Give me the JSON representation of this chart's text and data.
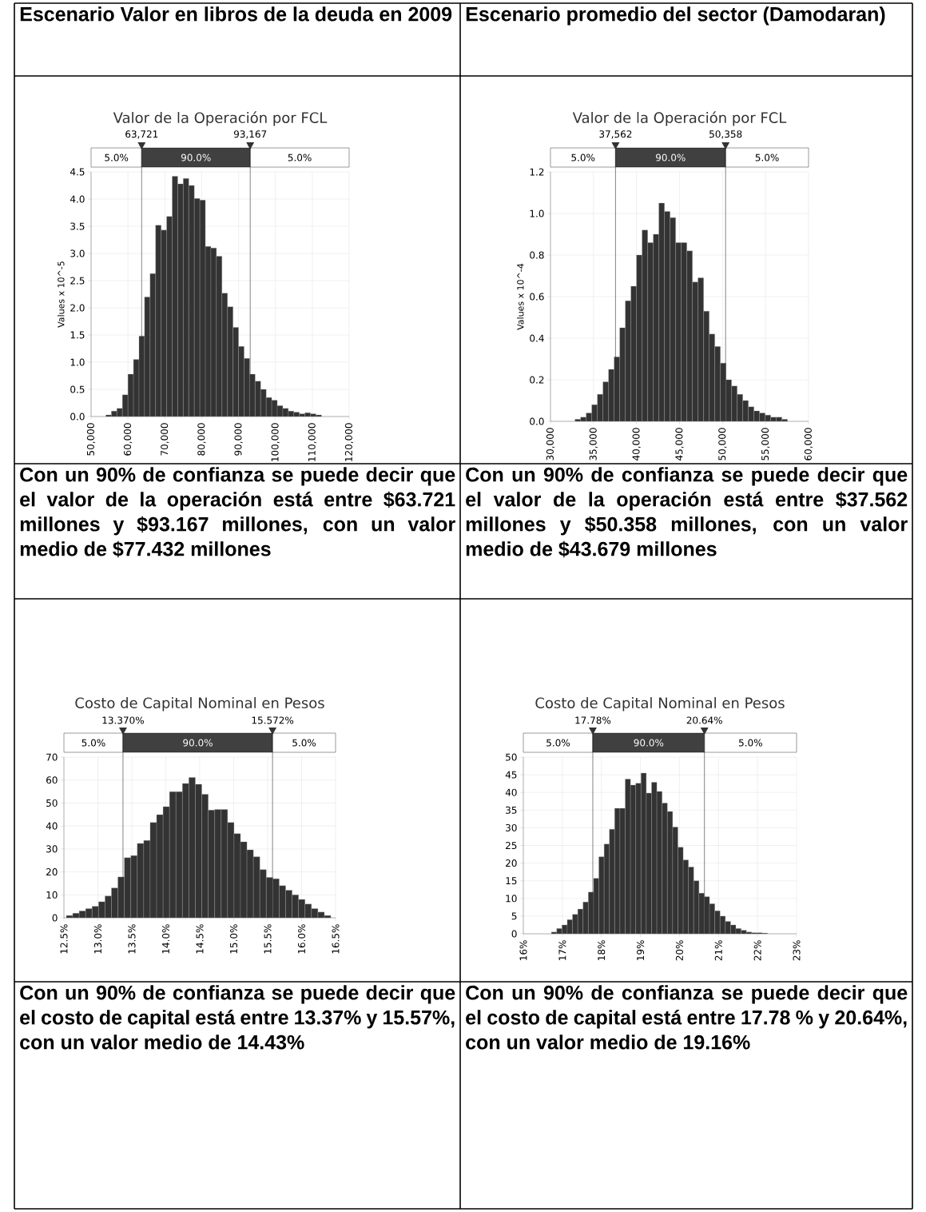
{
  "chart_data": [
    {
      "type": "histogram",
      "title": "Valor de la Operación por FCL",
      "ylabel": "Values x 10^-5",
      "color": "#333333",
      "grid": true,
      "bins": [
        54000,
        55500,
        57000,
        58500,
        60000,
        61500,
        63000,
        64500,
        66000,
        67500,
        69000,
        70500,
        72000,
        73500,
        75000,
        76500,
        78000,
        79500,
        81000,
        82500,
        84000,
        85500,
        87000,
        88500,
        90000,
        91500,
        93000,
        94500,
        96000,
        97500,
        99000,
        100500,
        102000,
        103500,
        105000,
        106500,
        108000,
        109500,
        111000,
        112500
      ],
      "values": [
        0.03,
        0.1,
        0.15,
        0.4,
        0.78,
        1.05,
        1.48,
        2.2,
        2.63,
        3.52,
        3.43,
        3.68,
        4.42,
        4.28,
        4.38,
        4.25,
        4.01,
        3.98,
        3.13,
        3.1,
        2.95,
        2.27,
        2.02,
        1.64,
        1.29,
        1.07,
        0.78,
        0.65,
        0.5,
        0.35,
        0.3,
        0.2,
        0.15,
        0.1,
        0.08,
        0.05,
        0.07,
        0.05,
        0.03
      ],
      "xlim": [
        50000,
        120000
      ],
      "ylim": [
        0,
        4.5
      ],
      "xticks": [
        {
          "value": 50000,
          "label": "50,000"
        },
        {
          "value": 60000,
          "label": "60,000"
        },
        {
          "value": 70000,
          "label": "70,000"
        },
        {
          "value": 80000,
          "label": "80,000"
        },
        {
          "value": 90000,
          "label": "90,000"
        },
        {
          "value": 100000,
          "label": "100,000"
        },
        {
          "value": 110000,
          "label": "110,000"
        },
        {
          "value": 120000,
          "label": "120,000"
        }
      ],
      "yticks": [
        {
          "value": 0,
          "label": "0.0"
        },
        {
          "value": 0.5,
          "label": "0.5"
        },
        {
          "value": 1,
          "label": "1.0"
        },
        {
          "value": 1.5,
          "label": "1.5"
        },
        {
          "value": 2,
          "label": "2.0"
        },
        {
          "value": 2.5,
          "label": "2.5"
        },
        {
          "value": 3,
          "label": "3.0"
        },
        {
          "value": 3.5,
          "label": "3.5"
        },
        {
          "value": 4,
          "label": "4.0"
        },
        {
          "value": 4.5,
          "label": "4.5"
        }
      ],
      "ref_lines": [
        {
          "axis": "x",
          "value": 63721,
          "label": "63,721"
        },
        {
          "axis": "x",
          "value": 93167,
          "label": "93,167"
        }
      ],
      "annotations": [
        "5.0%",
        "90.0%",
        "5.0%",
        "Escenario Valor en libros de la deuda en 2009",
        "Con un 90% de confianza se puede decir que el valor de la operación está entre $63.721 millones y $93.167 millones, con un valor medio de $77.432 millones"
      ]
    },
    {
      "type": "histogram",
      "title": "Valor de la Operación por FCL",
      "ylabel": "Values x 10^-4",
      "color": "#333333",
      "grid": true,
      "bins": [
        32850,
        33500,
        34150,
        34800,
        35450,
        36100,
        36750,
        37400,
        38050,
        38700,
        39350,
        40000,
        40650,
        41300,
        41950,
        42600,
        43250,
        43900,
        44550,
        45200,
        45850,
        46500,
        47150,
        47800,
        48450,
        49100,
        49750,
        50400,
        51050,
        51700,
        52350,
        53000,
        53650,
        54300,
        54950,
        55600,
        56250,
        56900,
        57550
      ],
      "values": [
        0.01,
        0.02,
        0.04,
        0.08,
        0.13,
        0.19,
        0.25,
        0.31,
        0.45,
        0.58,
        0.65,
        0.8,
        0.92,
        0.86,
        0.9,
        1.05,
        1.01,
        0.98,
        0.86,
        0.86,
        0.82,
        0.67,
        0.69,
        0.53,
        0.42,
        0.36,
        0.28,
        0.2,
        0.17,
        0.13,
        0.1,
        0.07,
        0.05,
        0.04,
        0.03,
        0.02,
        0.02,
        0.01
      ],
      "xlim": [
        30000,
        60000
      ],
      "ylim": [
        0,
        1.2
      ],
      "xticks": [
        {
          "value": 30000,
          "label": "30,000"
        },
        {
          "value": 35000,
          "label": "35,000"
        },
        {
          "value": 40000,
          "label": "40,000"
        },
        {
          "value": 45000,
          "label": "45,000"
        },
        {
          "value": 50000,
          "label": "50,000"
        },
        {
          "value": 55000,
          "label": "55,000"
        },
        {
          "value": 60000,
          "label": "60,000"
        }
      ],
      "yticks": [
        {
          "value": 0,
          "label": "0.0"
        },
        {
          "value": 0.2,
          "label": "0.2"
        },
        {
          "value": 0.4,
          "label": "0.4"
        },
        {
          "value": 0.6,
          "label": "0.6"
        },
        {
          "value": 0.8,
          "label": "0.8"
        },
        {
          "value": 1,
          "label": "1.0"
        },
        {
          "value": 1.2,
          "label": "1.2"
        }
      ],
      "ref_lines": [
        {
          "axis": "x",
          "value": 37562,
          "label": "37,562"
        },
        {
          "axis": "x",
          "value": 50358,
          "label": "50,358"
        }
      ],
      "annotations": [
        "5.0%",
        "90.0%",
        "5.0%",
        "Escenario promedio del sector (Damodaran)",
        "Con un 90% de confianza se puede decir que el valor de la operación está entre $37.562 millones y $50.358 millones, con un valor medio de $43.679 millones"
      ]
    },
    {
      "type": "histogram",
      "title": "Costo de Capital Nominal en Pesos",
      "color": "#333333",
      "grid": true,
      "bins": [
        12.535,
        12.63,
        12.725,
        12.82,
        12.915,
        13.01,
        13.105,
        13.2,
        13.295,
        13.39,
        13.485,
        13.58,
        13.675,
        13.77,
        13.865,
        13.96,
        14.055,
        14.15,
        14.245,
        14.34,
        14.435,
        14.53,
        14.625,
        14.72,
        14.815,
        14.91,
        15.005,
        15.1,
        15.195,
        15.29,
        15.385,
        15.48,
        15.575,
        15.67,
        15.765,
        15.86,
        15.955,
        16.05,
        16.145,
        16.24,
        16.335,
        16.43
      ],
      "values": [
        1,
        2,
        3,
        4,
        5,
        7,
        9.5,
        13,
        17.8,
        26.2,
        27.1,
        32.4,
        33.7,
        41.5,
        44.9,
        48.4,
        54.9,
        54.9,
        58.5,
        61.1,
        58.2,
        53.8,
        46.9,
        47.2,
        47.2,
        41.5,
        36.7,
        33.1,
        29.6,
        26.6,
        21,
        17.6,
        17,
        14,
        12,
        10,
        8,
        6,
        4,
        2.5,
        1
      ],
      "xlim": [
        12.5,
        16.5
      ],
      "ylim": [
        0,
        70
      ],
      "xticks": [
        {
          "value": 12.5,
          "label": "12.5%"
        },
        {
          "value": 13,
          "label": "13.0%"
        },
        {
          "value": 13.5,
          "label": "13.5%"
        },
        {
          "value": 14,
          "label": "14.0%"
        },
        {
          "value": 14.5,
          "label": "14.5%"
        },
        {
          "value": 15,
          "label": "15.0%"
        },
        {
          "value": 15.5,
          "label": "15.5%"
        },
        {
          "value": 16,
          "label": "16.0%"
        },
        {
          "value": 16.5,
          "label": "16.5%"
        }
      ],
      "yticks": [
        0,
        10,
        20,
        30,
        40,
        50,
        60,
        70
      ],
      "ref_lines": [
        {
          "axis": "x",
          "value": 13.37,
          "label": "13.370%"
        },
        {
          "axis": "x",
          "value": 15.572,
          "label": "15.572%"
        }
      ],
      "annotations": [
        "5.0%",
        "90.0%",
        "5.0%",
        "Con un 90% de confianza se puede decir que el costo de capital está entre 13.37% y 15.57%, con un valor medio de 14.43%"
      ]
    },
    {
      "type": "histogram",
      "title": "Costo de Capital Nominal en Pesos",
      "color": "#333333",
      "grid": true,
      "bins": [
        16.72,
        16.855,
        16.99,
        17.125,
        17.26,
        17.395,
        17.53,
        17.665,
        17.8,
        17.935,
        18.07,
        18.205,
        18.34,
        18.475,
        18.61,
        18.745,
        18.88,
        19.015,
        19.15,
        19.285,
        19.42,
        19.555,
        19.69,
        19.825,
        19.96,
        20.095,
        20.23,
        20.365,
        20.5,
        20.635,
        20.77,
        20.905,
        21.04,
        21.175,
        21.31,
        21.445,
        21.58,
        21.715,
        21.85,
        21.985,
        22.12,
        22.255
      ],
      "values": [
        0.5,
        1.5,
        2.5,
        4,
        5.5,
        7,
        9,
        11.8,
        15.7,
        21.8,
        25.4,
        29.6,
        35.5,
        35.5,
        43.8,
        42.1,
        42.6,
        45.5,
        39.8,
        42.9,
        40.3,
        37,
        34.6,
        30.2,
        24.5,
        20.9,
        18.9,
        15,
        11.5,
        10.5,
        8.5,
        6.5,
        5,
        3.5,
        2.5,
        1.5,
        1,
        0.5,
        0.3,
        0.3,
        0.2
      ],
      "xlim": [
        16,
        23
      ],
      "ylim": [
        0,
        50
      ],
      "xticks": [
        {
          "value": 16,
          "label": "16%"
        },
        {
          "value": 17,
          "label": "17%"
        },
        {
          "value": 18,
          "label": "18%"
        },
        {
          "value": 19,
          "label": "19%"
        },
        {
          "value": 20,
          "label": "20%"
        },
        {
          "value": 21,
          "label": "21%"
        },
        {
          "value": 22,
          "label": "22%"
        },
        {
          "value": 23,
          "label": "23%"
        }
      ],
      "yticks": [
        0,
        5,
        10,
        15,
        20,
        25,
        30,
        35,
        40,
        45,
        50
      ],
      "ref_lines": [
        {
          "axis": "x",
          "value": 17.78,
          "label": "17.78%"
        },
        {
          "axis": "x",
          "value": 20.64,
          "label": "20.64%"
        }
      ],
      "annotations": [
        "5.0%",
        "90.0%",
        "5.0%",
        "Con un 90% de confianza se puede decir que el costo de capital está entre 17.78 % y 20.64%, con un valor medio de 19.16%"
      ]
    }
  ]
}
